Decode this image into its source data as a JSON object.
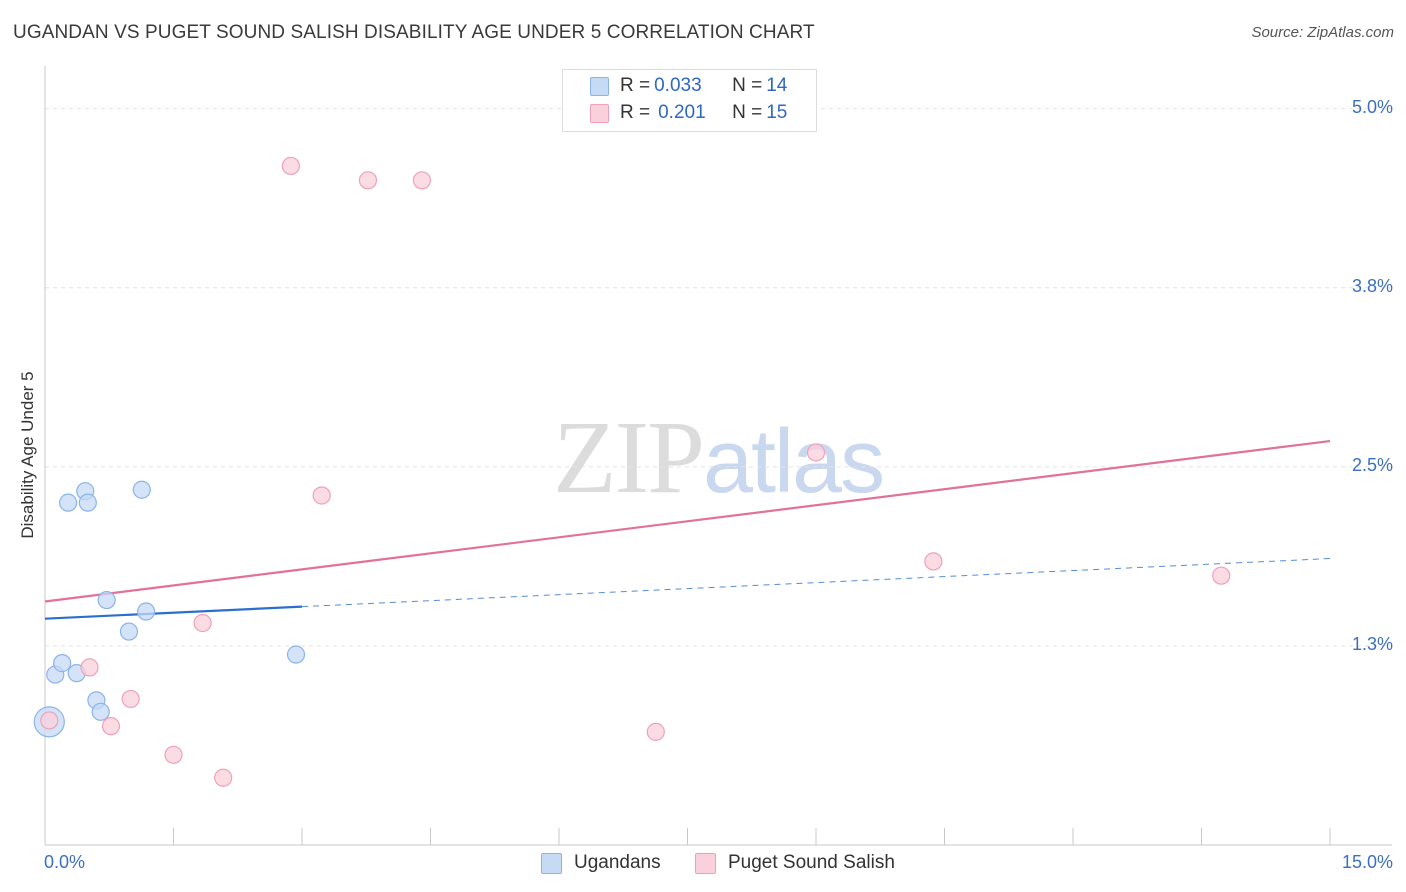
{
  "chart_data": {
    "type": "scatter",
    "title": "UGANDAN VS PUGET SOUND SALISH DISABILITY AGE UNDER 5 CORRELATION CHART",
    "source": "Source: ZipAtlas.com",
    "xlabel": "",
    "ylabel": "Disability Age Under 5",
    "xlim": [
      0,
      15
    ],
    "ylim": [
      0,
      5.2
    ],
    "x_tick_labels": [
      "0.0%",
      "15.0%"
    ],
    "y_ticks": [
      {
        "value": 1.25,
        "label": "1.3%"
      },
      {
        "value": 2.5,
        "label": "2.5%"
      },
      {
        "value": 3.75,
        "label": "3.8%"
      },
      {
        "value": 5.0,
        "label": "5.0%"
      }
    ],
    "grid": true,
    "watermark": {
      "zip": "ZIP",
      "atlas": "atlas"
    },
    "legend": {
      "rows": [
        {
          "r_label": "R = ",
          "r_value": "0.033",
          "n_label": "N = ",
          "n_value": "14"
        },
        {
          "r_label": "R = ",
          "r_value": "0.201",
          "n_label": "N = ",
          "n_value": "15"
        }
      ]
    },
    "series": [
      {
        "name": "Ugandans",
        "color": "#8ab4e8",
        "fill": "#c5daf5",
        "line_color": "#2a6fcd",
        "points": [
          {
            "x": 0.05,
            "y": 0.72,
            "big": true
          },
          {
            "x": 0.12,
            "y": 1.05
          },
          {
            "x": 0.2,
            "y": 1.13
          },
          {
            "x": 0.27,
            "y": 2.25
          },
          {
            "x": 0.37,
            "y": 1.06
          },
          {
            "x": 0.47,
            "y": 2.33
          },
          {
            "x": 0.5,
            "y": 2.25
          },
          {
            "x": 0.6,
            "y": 0.87
          },
          {
            "x": 0.65,
            "y": 0.79
          },
          {
            "x": 0.72,
            "y": 1.57
          },
          {
            "x": 0.98,
            "y": 1.35
          },
          {
            "x": 1.13,
            "y": 2.34
          },
          {
            "x": 1.18,
            "y": 1.49
          },
          {
            "x": 2.93,
            "y": 1.19
          }
        ],
        "trend": {
          "x0": 0,
          "y0": 1.44,
          "x1": 15,
          "y1": 1.86,
          "solid_until": 3.0
        }
      },
      {
        "name": "Puget Sound Salish",
        "color": "#f0a0b8",
        "fill": "#f9d0dc",
        "line_color": "#e0729a",
        "points": [
          {
            "x": 0.05,
            "y": 0.73
          },
          {
            "x": 0.52,
            "y": 1.1
          },
          {
            "x": 0.77,
            "y": 0.69
          },
          {
            "x": 1.0,
            "y": 0.88
          },
          {
            "x": 1.5,
            "y": 0.49
          },
          {
            "x": 1.84,
            "y": 1.41
          },
          {
            "x": 2.08,
            "y": 0.33
          },
          {
            "x": 2.87,
            "y": 4.6
          },
          {
            "x": 3.23,
            "y": 2.3
          },
          {
            "x": 3.77,
            "y": 4.5
          },
          {
            "x": 4.4,
            "y": 4.5
          },
          {
            "x": 7.13,
            "y": 0.65
          },
          {
            "x": 9.0,
            "y": 2.6
          },
          {
            "x": 10.37,
            "y": 1.84
          },
          {
            "x": 13.73,
            "y": 1.74
          }
        ],
        "trend": {
          "x0": 0,
          "y0": 1.56,
          "x1": 15,
          "y1": 2.68
        }
      }
    ]
  }
}
